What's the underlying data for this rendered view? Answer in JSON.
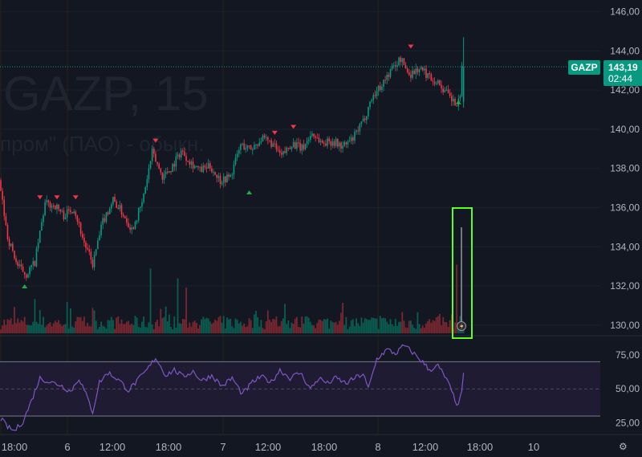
{
  "watermark": {
    "title": "GAZP, 15",
    "subtitle": "пром\" (ПАО) - обыкн."
  },
  "symbol_label": "GAZP",
  "last_price": "143,19",
  "countdown": "02:44",
  "colors": {
    "up": "#089981",
    "down": "#f23645",
    "rsi": "#7e57c2",
    "highlight": "#5bff25",
    "background": "#131722"
  },
  "icons": {
    "settings": "gear-icon",
    "flash": "lightning-icon"
  },
  "chart_data": [
    {
      "type": "candlestick",
      "symbol": "GAZP",
      "interval": "15",
      "ylim": [
        129.5,
        146.6
      ],
      "y_ticks": [
        "146,00",
        "144,00",
        "142,00",
        "140,00",
        "138,00",
        "136,00",
        "134,00",
        "132,00",
        "130,00"
      ],
      "y_tick_values": [
        146,
        144,
        142,
        140,
        138,
        136,
        134,
        132,
        130
      ],
      "x_ticks": [
        "18:00",
        "6",
        "12:00",
        "18:00",
        "7",
        "12:00",
        "18:00",
        "8",
        "12:00",
        "18:00",
        "10"
      ],
      "anchors": [
        {
          "t": 0,
          "p": 137.4
        },
        {
          "t": 5,
          "p": 134.5
        },
        {
          "t": 11,
          "p": 133.0
        },
        {
          "t": 16,
          "p": 132.6
        },
        {
          "t": 21,
          "p": 133.2
        },
        {
          "t": 27,
          "p": 136.2
        },
        {
          "t": 33,
          "p": 136.1
        },
        {
          "t": 38,
          "p": 135.6
        },
        {
          "t": 44,
          "p": 136.0
        },
        {
          "t": 50,
          "p": 134.2
        },
        {
          "t": 55,
          "p": 133.1
        },
        {
          "t": 61,
          "p": 135.3
        },
        {
          "t": 67,
          "p": 136.4
        },
        {
          "t": 72,
          "p": 135.8
        },
        {
          "t": 78,
          "p": 134.9
        },
        {
          "t": 84,
          "p": 136.2
        },
        {
          "t": 90,
          "p": 138.8
        },
        {
          "t": 96,
          "p": 137.6
        },
        {
          "t": 101,
          "p": 138.0
        },
        {
          "t": 107,
          "p": 138.9
        },
        {
          "t": 113,
          "p": 138.3
        },
        {
          "t": 118,
          "p": 137.9
        },
        {
          "t": 124,
          "p": 138.1
        },
        {
          "t": 130,
          "p": 137.4
        },
        {
          "t": 136,
          "p": 137.6
        },
        {
          "t": 142,
          "p": 139.2
        },
        {
          "t": 148,
          "p": 139.0
        },
        {
          "t": 154,
          "p": 139.5
        },
        {
          "t": 160,
          "p": 139.3
        },
        {
          "t": 166,
          "p": 138.6
        },
        {
          "t": 172,
          "p": 139.3
        },
        {
          "t": 178,
          "p": 139.0
        },
        {
          "t": 184,
          "p": 139.8
        },
        {
          "t": 190,
          "p": 139.3
        },
        {
          "t": 196,
          "p": 139.4
        },
        {
          "t": 202,
          "p": 139.1
        },
        {
          "t": 208,
          "p": 139.5
        },
        {
          "t": 214,
          "p": 140.4
        },
        {
          "t": 219,
          "p": 141.6
        },
        {
          "t": 225,
          "p": 142.3
        },
        {
          "t": 231,
          "p": 143.1
        },
        {
          "t": 236,
          "p": 143.6
        },
        {
          "t": 241,
          "p": 142.8
        },
        {
          "t": 247,
          "p": 143.1
        },
        {
          "t": 253,
          "p": 142.7
        },
        {
          "t": 259,
          "p": 142.3
        },
        {
          "t": 265,
          "p": 141.6
        },
        {
          "t": 269,
          "p": 141.2
        },
        {
          "t": 271,
          "p": 141.5
        },
        {
          "t": 272,
          "p": 143.19
        }
      ],
      "volume_spikes": [
        {
          "t": 20,
          "v": 0.45
        },
        {
          "t": 55,
          "v": 0.3
        },
        {
          "t": 88,
          "v": 0.85
        },
        {
          "t": 97,
          "v": 0.35
        },
        {
          "t": 104,
          "v": 0.72
        },
        {
          "t": 109,
          "v": 0.6
        },
        {
          "t": 157,
          "v": 0.3
        },
        {
          "t": 236,
          "v": 0.28
        },
        {
          "t": 265,
          "v": 0.25
        },
        {
          "t": 268,
          "v": 0.9
        }
      ],
      "signals_down": [
        {
          "t": 23,
          "p": 136.5
        },
        {
          "t": 33,
          "p": 136.5
        },
        {
          "t": 44,
          "p": 136.5
        },
        {
          "t": 91,
          "p": 139.4
        },
        {
          "t": 161,
          "p": 139.8
        },
        {
          "t": 172,
          "p": 140.1
        },
        {
          "t": 241,
          "p": 144.2
        }
      ],
      "signals_up": [
        {
          "t": 14,
          "p": 132.0
        },
        {
          "t": 146,
          "p": 136.8
        },
        {
          "t": 269,
          "p": 141.4
        }
      ]
    },
    {
      "type": "line",
      "name": "RSI",
      "ylim": [
        17,
        88
      ],
      "y_ticks": [
        "75,00",
        "50,00",
        "25,00"
      ],
      "y_tick_values": [
        75,
        50,
        25
      ],
      "bands": [
        70,
        30
      ],
      "midline": 50,
      "anchors": [
        {
          "t": 0,
          "v": 28
        },
        {
          "t": 4,
          "v": 22
        },
        {
          "t": 8,
          "v": 19
        },
        {
          "t": 13,
          "v": 26
        },
        {
          "t": 17,
          "v": 38
        },
        {
          "t": 23,
          "v": 58
        },
        {
          "t": 29,
          "v": 55
        },
        {
          "t": 35,
          "v": 53
        },
        {
          "t": 41,
          "v": 48
        },
        {
          "t": 46,
          "v": 58
        },
        {
          "t": 51,
          "v": 43
        },
        {
          "t": 54,
          "v": 33
        },
        {
          "t": 58,
          "v": 55
        },
        {
          "t": 63,
          "v": 62
        },
        {
          "t": 69,
          "v": 57
        },
        {
          "t": 75,
          "v": 49
        },
        {
          "t": 81,
          "v": 57
        },
        {
          "t": 86,
          "v": 64
        },
        {
          "t": 91,
          "v": 73
        },
        {
          "t": 97,
          "v": 60
        },
        {
          "t": 102,
          "v": 64
        },
        {
          "t": 107,
          "v": 59
        },
        {
          "t": 113,
          "v": 63
        },
        {
          "t": 118,
          "v": 56
        },
        {
          "t": 124,
          "v": 60
        },
        {
          "t": 130,
          "v": 52
        },
        {
          "t": 136,
          "v": 58
        },
        {
          "t": 142,
          "v": 46
        },
        {
          "t": 148,
          "v": 55
        },
        {
          "t": 153,
          "v": 59
        },
        {
          "t": 159,
          "v": 55
        },
        {
          "t": 164,
          "v": 64
        },
        {
          "t": 170,
          "v": 58
        },
        {
          "t": 176,
          "v": 62
        },
        {
          "t": 182,
          "v": 50
        },
        {
          "t": 187,
          "v": 58
        },
        {
          "t": 192,
          "v": 54
        },
        {
          "t": 197,
          "v": 58
        },
        {
          "t": 203,
          "v": 54
        },
        {
          "t": 208,
          "v": 58
        },
        {
          "t": 213,
          "v": 61
        },
        {
          "t": 216,
          "v": 50
        },
        {
          "t": 221,
          "v": 72
        },
        {
          "t": 227,
          "v": 79
        },
        {
          "t": 232,
          "v": 76
        },
        {
          "t": 237,
          "v": 82
        },
        {
          "t": 242,
          "v": 77
        },
        {
          "t": 247,
          "v": 71
        },
        {
          "t": 252,
          "v": 64
        },
        {
          "t": 257,
          "v": 67
        },
        {
          "t": 262,
          "v": 57
        },
        {
          "t": 266,
          "v": 45
        },
        {
          "t": 269,
          "v": 37
        },
        {
          "t": 271,
          "v": 50
        },
        {
          "t": 272,
          "v": 60
        }
      ]
    }
  ]
}
